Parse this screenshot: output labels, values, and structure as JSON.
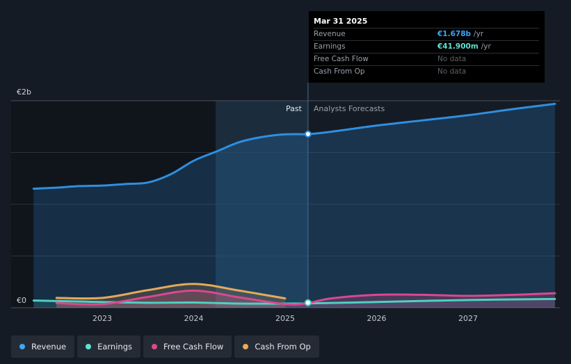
{
  "chart_data": {
    "type": "area",
    "y_axis": {
      "top_label": "€2b",
      "bottom_label": "€0",
      "ylim": [
        0,
        2000
      ]
    },
    "x_axis": {
      "ticks": [
        "2023",
        "2024",
        "2025",
        "2026",
        "2027"
      ]
    },
    "past_label": "Past",
    "forecast_label": "Analysts Forecasts",
    "tooltip": {
      "date": "Mar 31 2025",
      "rows": [
        {
          "label": "Revenue",
          "value": "€1.678b",
          "unit": "/yr",
          "color": "#3fa5f5"
        },
        {
          "label": "Earnings",
          "value": "€41.900m",
          "unit": "/yr",
          "color": "#5fe3d0"
        },
        {
          "label": "Free Cash Flow",
          "value": "No data",
          "unit": ""
        },
        {
          "label": "Cash From Op",
          "value": "No data",
          "unit": ""
        }
      ]
    },
    "series": [
      {
        "name": "Revenue",
        "color": "#2f8fe0",
        "points": [
          [
            2022.25,
            1150
          ],
          [
            2022.5,
            1160
          ],
          [
            2022.75,
            1175
          ],
          [
            2023.0,
            1180
          ],
          [
            2023.25,
            1195
          ],
          [
            2023.5,
            1210
          ],
          [
            2023.75,
            1290
          ],
          [
            2024.0,
            1420
          ],
          [
            2024.25,
            1510
          ],
          [
            2024.5,
            1600
          ],
          [
            2024.75,
            1650
          ],
          [
            2025.0,
            1675
          ],
          [
            2025.25,
            1678
          ],
          [
            2025.5,
            1700
          ],
          [
            2026.0,
            1760
          ],
          [
            2026.5,
            1810
          ],
          [
            2027.0,
            1860
          ],
          [
            2027.5,
            1920
          ],
          [
            2027.95,
            1970
          ]
        ]
      },
      {
        "name": "Earnings",
        "color": "#4fd1c0",
        "points": [
          [
            2022.25,
            70
          ],
          [
            2022.75,
            60
          ],
          [
            2023.0,
            55
          ],
          [
            2023.5,
            48
          ],
          [
            2024.0,
            50
          ],
          [
            2024.5,
            40
          ],
          [
            2025.0,
            40
          ],
          [
            2025.25,
            42
          ],
          [
            2026.0,
            55
          ],
          [
            2027.0,
            75
          ],
          [
            2027.95,
            85
          ]
        ]
      },
      {
        "name": "Free Cash Flow",
        "color": "#d9498f",
        "points": [
          [
            2022.5,
            45
          ],
          [
            2023.0,
            35
          ],
          [
            2023.5,
            105
          ],
          [
            2024.0,
            165
          ],
          [
            2024.5,
            100
          ],
          [
            2025.0,
            35
          ],
          [
            2025.25,
            45
          ],
          [
            2025.5,
            90
          ],
          [
            2026.0,
            125
          ],
          [
            2026.5,
            125
          ],
          [
            2027.0,
            115
          ],
          [
            2027.5,
            125
          ],
          [
            2027.95,
            140
          ]
        ]
      },
      {
        "name": "Cash From Op",
        "color": "#e7a95b",
        "points": [
          [
            2022.5,
            95
          ],
          [
            2023.0,
            95
          ],
          [
            2023.5,
            170
          ],
          [
            2024.0,
            230
          ],
          [
            2024.5,
            165
          ],
          [
            2025.0,
            90
          ]
        ]
      }
    ],
    "grid": true
  }
}
